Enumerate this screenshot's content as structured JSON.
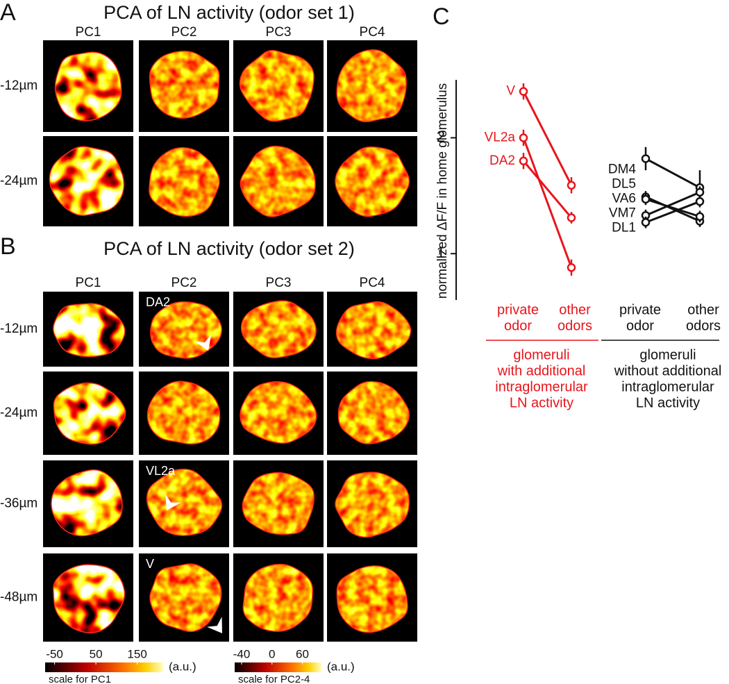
{
  "panel_a": {
    "label": "A",
    "title": "PCA of LN activity (odor set 1)",
    "columns": [
      "PC1",
      "PC2",
      "PC3",
      "PC4"
    ],
    "rows": [
      {
        "depth": "-12µm"
      },
      {
        "depth": "-24µm"
      }
    ]
  },
  "panel_b": {
    "label": "B",
    "title": "PCA of LN activity (odor set 2)",
    "columns": [
      "PC1",
      "PC2",
      "PC3",
      "PC4"
    ],
    "rows": [
      {
        "depth": "-12µm",
        "tag": "DA2"
      },
      {
        "depth": "-24µm"
      },
      {
        "depth": "-36µm",
        "tag": "VL2a"
      },
      {
        "depth": "-48µm",
        "tag": "V"
      }
    ],
    "scales": [
      {
        "ticks": [
          -50,
          50,
          150
        ],
        "unit": "(a.u.)",
        "caption": "scale for PC1"
      },
      {
        "ticks": [
          -40,
          0,
          60
        ],
        "unit": "(a.u.)",
        "caption": "scale for PC2-4"
      }
    ]
  },
  "chart_data": {
    "type": "paired-line",
    "label": "C",
    "y_label": "normalized  ΔF/F in home glomerulus",
    "ylim": [
      0.6,
      2.5
    ],
    "yticks": [
      1,
      2
    ],
    "groups": [
      {
        "name": [
          "glomeruli",
          "with additional",
          "intraglomerular",
          "LN activity"
        ],
        "color": "#e8141b",
        "categories": [
          [
            "private",
            "odor"
          ],
          [
            "other",
            "odors"
          ]
        ],
        "series": [
          {
            "name": "V",
            "values": [
              2.4,
              1.59
            ],
            "errors": [
              0.07,
              0.07
            ]
          },
          {
            "name": "VL2a",
            "values": [
              2.0,
              0.88
            ],
            "errors": [
              0.07,
              0.07
            ]
          },
          {
            "name": "DA2",
            "values": [
              1.8,
              1.31
            ],
            "errors": [
              0.07,
              0.05
            ]
          }
        ]
      },
      {
        "name": [
          "glomeruli",
          "without additional",
          "intraglomerular",
          "LN activity"
        ],
        "color": "#111111",
        "categories": [
          [
            "private",
            "odor"
          ],
          [
            "other",
            "odors"
          ]
        ],
        "series": [
          {
            "name": "DM4",
            "values": [
              1.82,
              1.57
            ],
            "errors": [
              0.1,
              0.15
            ]
          },
          {
            "name": "DL5",
            "values": [
              1.49,
              1.28
            ],
            "errors": [
              0.05,
              0.05
            ]
          },
          {
            "name": "VA6",
            "values": [
              1.47,
              1.32
            ],
            "errors": [
              0.05,
              0.05
            ]
          },
          {
            "name": "VM7",
            "values": [
              1.33,
              1.53
            ],
            "errors": [
              0.05,
              0.05
            ]
          },
          {
            "name": "DL1",
            "values": [
              1.27,
              1.45
            ],
            "errors": [
              0.05,
              0.05
            ]
          }
        ]
      }
    ]
  }
}
